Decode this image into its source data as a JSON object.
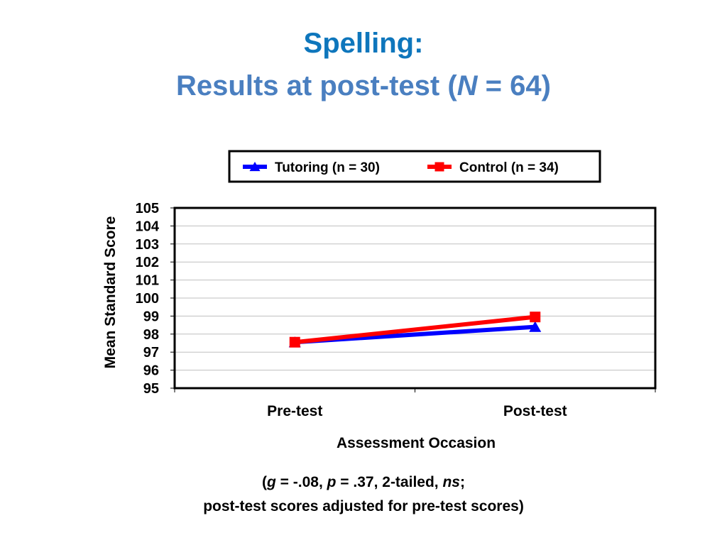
{
  "slide": {
    "title_line1": "Spelling:",
    "title_line2_prefix": "Results at post-test (",
    "title_line2_n": "N",
    "title_line2_suffix": " = 64)",
    "note_open": "(",
    "note_g": "g",
    "note_mid1": " = -.08, ",
    "note_p": "p",
    "note_mid2": " = .37, 2-tailed, ",
    "note_ns": "ns",
    "note_end": ";",
    "note_line2": "post-test scores adjusted for pre-test scores)"
  },
  "chart_data": {
    "type": "line",
    "title": "",
    "xlabel": "Assessment Occasion",
    "ylabel": "Mean Standard Score",
    "categories": [
      "Pre-test",
      "Post-test"
    ],
    "ylim": [
      95,
      105
    ],
    "yticks": [
      95,
      96,
      97,
      98,
      99,
      100,
      101,
      102,
      103,
      104,
      105
    ],
    "grid": true,
    "legend_position": "top",
    "series": [
      {
        "name": "Tutoring (n = 30)",
        "values": [
          97.55,
          98.4
        ],
        "color": "#0000FF",
        "marker": "triangle"
      },
      {
        "name": "Control (n = 34)",
        "values": [
          97.55,
          98.95
        ],
        "color": "#FF0000",
        "marker": "square"
      }
    ]
  }
}
